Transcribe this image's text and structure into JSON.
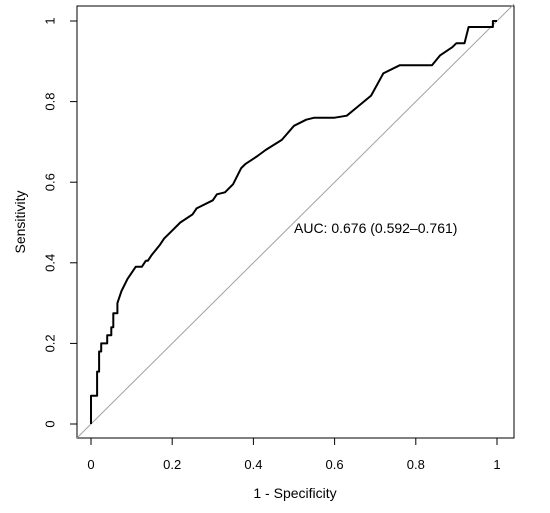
{
  "chart_data": {
    "type": "line",
    "title": "",
    "xlabel": "1 - Specificity",
    "ylabel": "Sensitivity",
    "xlim": [
      0,
      1
    ],
    "ylim": [
      0,
      1
    ],
    "x_ticks": [
      0,
      0.2,
      0.4,
      0.6,
      0.8,
      1
    ],
    "x_tick_labels": [
      "0",
      "0.2",
      "0.4",
      "0.6",
      "0.8",
      "1"
    ],
    "y_ticks": [
      0,
      0.2,
      0.4,
      0.6,
      0.8,
      1
    ],
    "y_tick_labels": [
      "0",
      "0.2",
      "0.4",
      "0.6",
      "0.8",
      "1"
    ],
    "grid": false,
    "annotation": "AUC: 0.676 (0.592–0.761)",
    "reference_line_color": "#a0a0a0",
    "series_color": "#000000",
    "series": [
      {
        "x": [
          0,
          0,
          0.005,
          0.015,
          0.015,
          0.02,
          0.02,
          0.025,
          0.025,
          0.04,
          0.04,
          0.05,
          0.05,
          0.055,
          0.055,
          0.065,
          0.065,
          0.075,
          0.08,
          0.09,
          0.11,
          0.125,
          0.135,
          0.14,
          0.15,
          0.17,
          0.18,
          0.2,
          0.22,
          0.25,
          0.26,
          0.3,
          0.31,
          0.33,
          0.35,
          0.37,
          0.38,
          0.41,
          0.43,
          0.47,
          0.5,
          0.53,
          0.55,
          0.6,
          0.63,
          0.66,
          0.69,
          0.72,
          0.76,
          0.84,
          0.86,
          0.89,
          0.9,
          0.92,
          0.93,
          0.99,
          0.99,
          1
        ],
        "y": [
          0,
          0.07,
          0.07,
          0.07,
          0.13,
          0.13,
          0.18,
          0.18,
          0.2,
          0.2,
          0.22,
          0.22,
          0.24,
          0.24,
          0.275,
          0.275,
          0.3,
          0.33,
          0.34,
          0.36,
          0.39,
          0.39,
          0.405,
          0.405,
          0.42,
          0.445,
          0.46,
          0.48,
          0.5,
          0.52,
          0.535,
          0.555,
          0.57,
          0.575,
          0.595,
          0.635,
          0.645,
          0.665,
          0.68,
          0.705,
          0.74,
          0.755,
          0.76,
          0.76,
          0.765,
          0.79,
          0.815,
          0.87,
          0.89,
          0.89,
          0.915,
          0.935,
          0.945,
          0.945,
          0.985,
          0.985,
          1,
          1
        ]
      }
    ]
  }
}
